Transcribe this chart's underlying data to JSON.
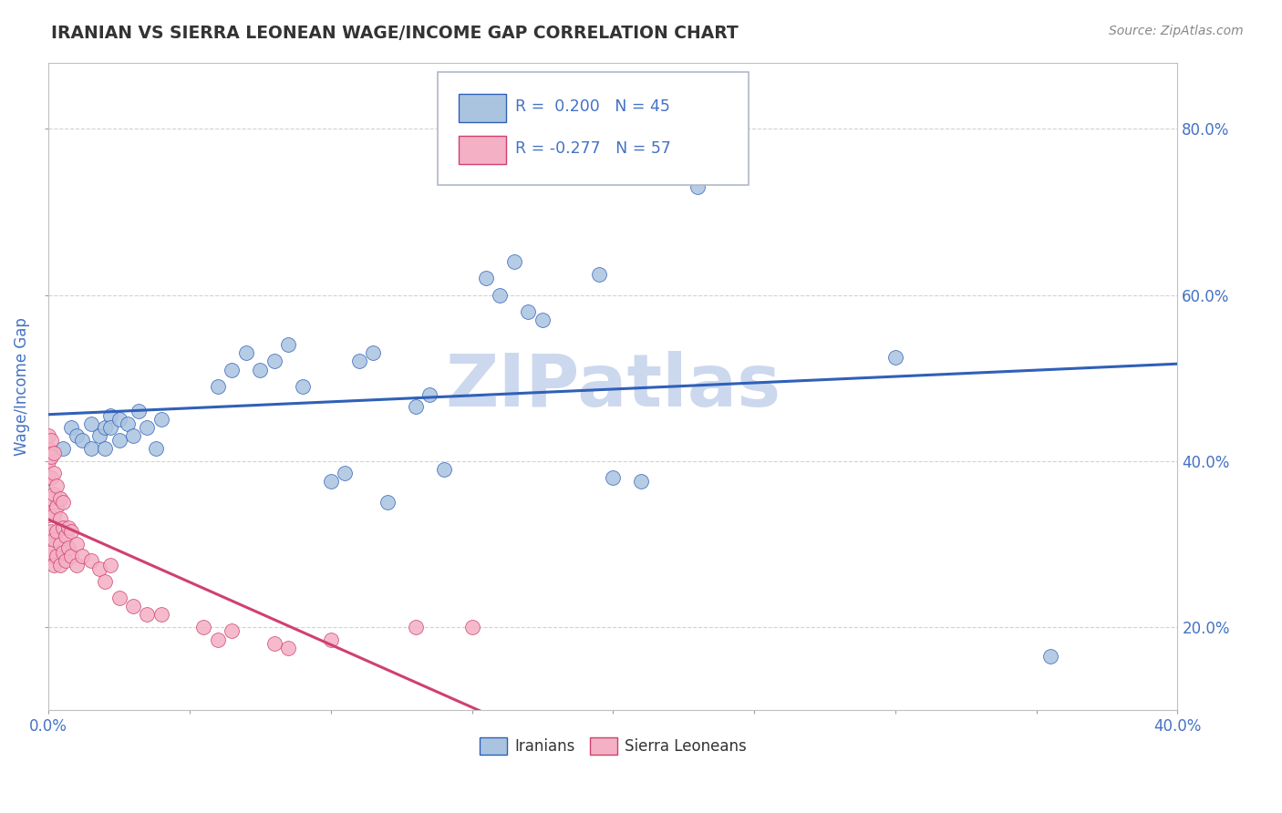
{
  "title": "IRANIAN VS SIERRA LEONEAN WAGE/INCOME GAP CORRELATION CHART",
  "source_text": "Source: ZipAtlas.com",
  "ylabel": "Wage/Income Gap",
  "xlim": [
    0.0,
    0.4
  ],
  "ylim": [
    0.1,
    0.88
  ],
  "xtick_labels": [
    "0.0%",
    "",
    "",
    "",
    "",
    "",
    "",
    "",
    "40.0%"
  ],
  "xtick_values": [
    0.0,
    0.05,
    0.1,
    0.15,
    0.2,
    0.25,
    0.3,
    0.35,
    0.4
  ],
  "ytick_labels": [
    "20.0%",
    "40.0%",
    "60.0%",
    "80.0%"
  ],
  "ytick_values": [
    0.2,
    0.4,
    0.6,
    0.8
  ],
  "iranian_color": "#aac4e0",
  "sierra_color": "#f4b0c4",
  "iranian_line_color": "#3060b8",
  "sierra_line_color": "#d04070",
  "watermark_text": "ZIPatlas",
  "watermark_color": "#ccd8ee",
  "background_color": "#ffffff",
  "grid_color": "#c8c8c8",
  "title_color": "#333333",
  "axis_label_color": "#4472c4",
  "legend_text_color": "#4472c4",
  "iranians_scatter": [
    [
      0.005,
      0.415
    ],
    [
      0.008,
      0.44
    ],
    [
      0.01,
      0.43
    ],
    [
      0.012,
      0.425
    ],
    [
      0.015,
      0.445
    ],
    [
      0.015,
      0.415
    ],
    [
      0.018,
      0.43
    ],
    [
      0.02,
      0.44
    ],
    [
      0.02,
      0.415
    ],
    [
      0.022,
      0.455
    ],
    [
      0.022,
      0.44
    ],
    [
      0.025,
      0.425
    ],
    [
      0.025,
      0.45
    ],
    [
      0.028,
      0.445
    ],
    [
      0.03,
      0.43
    ],
    [
      0.032,
      0.46
    ],
    [
      0.035,
      0.44
    ],
    [
      0.038,
      0.415
    ],
    [
      0.04,
      0.45
    ],
    [
      0.06,
      0.49
    ],
    [
      0.065,
      0.51
    ],
    [
      0.07,
      0.53
    ],
    [
      0.075,
      0.51
    ],
    [
      0.08,
      0.52
    ],
    [
      0.085,
      0.54
    ],
    [
      0.09,
      0.49
    ],
    [
      0.1,
      0.375
    ],
    [
      0.105,
      0.385
    ],
    [
      0.11,
      0.52
    ],
    [
      0.115,
      0.53
    ],
    [
      0.12,
      0.35
    ],
    [
      0.13,
      0.465
    ],
    [
      0.135,
      0.48
    ],
    [
      0.14,
      0.39
    ],
    [
      0.155,
      0.62
    ],
    [
      0.16,
      0.6
    ],
    [
      0.165,
      0.64
    ],
    [
      0.17,
      0.58
    ],
    [
      0.175,
      0.57
    ],
    [
      0.195,
      0.625
    ],
    [
      0.2,
      0.38
    ],
    [
      0.21,
      0.375
    ],
    [
      0.23,
      0.73
    ],
    [
      0.3,
      0.525
    ],
    [
      0.355,
      0.165
    ]
  ],
  "sierraleonean_scatter": [
    [
      0.0,
      0.285
    ],
    [
      0.0,
      0.31
    ],
    [
      0.0,
      0.335
    ],
    [
      0.0,
      0.355
    ],
    [
      0.0,
      0.38
    ],
    [
      0.0,
      0.4
    ],
    [
      0.0,
      0.415
    ],
    [
      0.0,
      0.43
    ],
    [
      0.001,
      0.29
    ],
    [
      0.001,
      0.315
    ],
    [
      0.001,
      0.355
    ],
    [
      0.001,
      0.38
    ],
    [
      0.001,
      0.405
    ],
    [
      0.001,
      0.425
    ],
    [
      0.002,
      0.275
    ],
    [
      0.002,
      0.305
    ],
    [
      0.002,
      0.335
    ],
    [
      0.002,
      0.36
    ],
    [
      0.002,
      0.385
    ],
    [
      0.002,
      0.41
    ],
    [
      0.003,
      0.285
    ],
    [
      0.003,
      0.315
    ],
    [
      0.003,
      0.345
    ],
    [
      0.003,
      0.37
    ],
    [
      0.004,
      0.275
    ],
    [
      0.004,
      0.3
    ],
    [
      0.004,
      0.33
    ],
    [
      0.004,
      0.355
    ],
    [
      0.005,
      0.29
    ],
    [
      0.005,
      0.32
    ],
    [
      0.005,
      0.35
    ],
    [
      0.006,
      0.28
    ],
    [
      0.006,
      0.31
    ],
    [
      0.007,
      0.295
    ],
    [
      0.007,
      0.32
    ],
    [
      0.008,
      0.285
    ],
    [
      0.008,
      0.315
    ],
    [
      0.01,
      0.275
    ],
    [
      0.01,
      0.3
    ],
    [
      0.012,
      0.285
    ],
    [
      0.015,
      0.28
    ],
    [
      0.018,
      0.27
    ],
    [
      0.02,
      0.255
    ],
    [
      0.022,
      0.275
    ],
    [
      0.025,
      0.235
    ],
    [
      0.03,
      0.225
    ],
    [
      0.035,
      0.215
    ],
    [
      0.04,
      0.215
    ],
    [
      0.055,
      0.2
    ],
    [
      0.06,
      0.185
    ],
    [
      0.065,
      0.195
    ],
    [
      0.08,
      0.18
    ],
    [
      0.085,
      0.175
    ],
    [
      0.1,
      0.185
    ],
    [
      0.13,
      0.2
    ],
    [
      0.15,
      0.2
    ]
  ]
}
